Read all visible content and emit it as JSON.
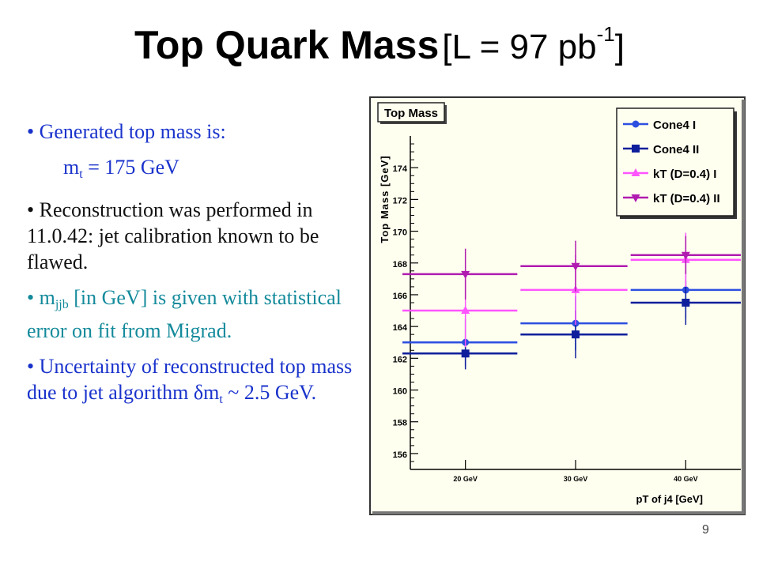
{
  "slide": {
    "title_main": "Top Quark Mass",
    "title_sub": "[L = 97 pb",
    "title_sup": "-1",
    "title_close": "]",
    "page_number": "9"
  },
  "bullets": {
    "b1_text": "• Generated top mass is:",
    "b1_m": "m",
    "b1_sub": "t",
    "b1_rest": " = 175 GeV",
    "b2_text": "• Reconstruction was performed in 11.0.42: jet calibration known to be flawed.",
    "b3_m": "• m",
    "b3_sub": "jjb",
    "b3_rest": " [in GeV] is given with statistical error on fit  from Migrad.",
    "b4_text": "• Uncertainty of reconstructed top mass due to jet algorithm ",
    "b4_m": "δm",
    "b4_sub": "t",
    "b4_rest": " ~ 2.5 GeV."
  },
  "colors": {
    "bullet_blue": "#1a33cc",
    "bullet_teal": "#138a9b",
    "plot_background": "#fffff0",
    "cone4_1": "#2d4fe0",
    "cone4_2": "#0f1f9c",
    "kt_1": "#ff55ff",
    "kt_2": "#b01cb0"
  },
  "chart_data": {
    "type": "scatter",
    "title": "Top Mass",
    "xlabel": "pT of j4 [GeV]",
    "ylabel": "Top Mass [GeV]",
    "categories": [
      "20 GeV",
      "30 GeV",
      "40 GeV"
    ],
    "ylim": [
      155,
      176
    ],
    "yticks": [
      156,
      158,
      160,
      162,
      164,
      166,
      168,
      170,
      172,
      174
    ],
    "legend_position": "top-right",
    "grid": false,
    "series": [
      {
        "name": "Cone4 I",
        "marker": "circle",
        "color": "#2d4fe0",
        "values": [
          163.0,
          164.2,
          166.3
        ],
        "errors": [
          1.5,
          1.7,
          1.8
        ]
      },
      {
        "name": "Cone4 II",
        "marker": "square",
        "color": "#0f1f9c",
        "values": [
          162.3,
          163.5,
          165.5
        ],
        "errors": [
          1.0,
          1.5,
          1.4
        ]
      },
      {
        "name": "kT (D=0.4) I",
        "marker": "triangle-up",
        "color": "#ff55ff",
        "values": [
          165.0,
          166.3,
          168.2
        ],
        "errors": [
          2.3,
          2.2,
          1.7
        ]
      },
      {
        "name": "kT (D=0.4) II",
        "marker": "triangle-down",
        "color": "#b01cb0",
        "values": [
          167.3,
          167.8,
          168.5
        ],
        "errors": [
          1.6,
          1.6,
          1.2
        ]
      }
    ]
  }
}
